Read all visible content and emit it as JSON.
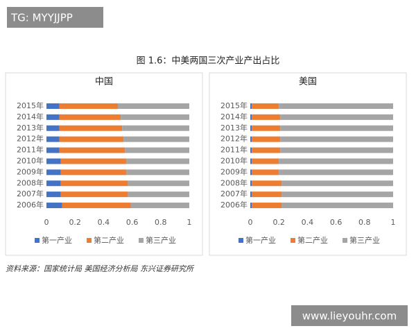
{
  "watermark_top": "TG: MYYJJPP",
  "figure_title": "图 1.6：中美两国三次产业产出占比",
  "source": "资料来源：国家统计局 美国经济分析局   东兴证券研究所",
  "watermark_bottom": "www.lieyouhr.com",
  "chart_data": [
    {
      "type": "bar",
      "orientation": "horizontal",
      "stacked": true,
      "title": "中国",
      "categories": [
        "2015年",
        "2014年",
        "2013年",
        "2012年",
        "2011年",
        "2010年",
        "2009年",
        "2008年",
        "2007年",
        "2006年"
      ],
      "series": [
        {
          "name": "第一产业",
          "color": "#4472c4",
          "values": [
            0.09,
            0.09,
            0.09,
            0.09,
            0.09,
            0.1,
            0.1,
            0.1,
            0.1,
            0.11
          ]
        },
        {
          "name": "第二产业",
          "color": "#ed7d31",
          "values": [
            0.41,
            0.43,
            0.44,
            0.45,
            0.46,
            0.46,
            0.46,
            0.47,
            0.47,
            0.48
          ]
        },
        {
          "name": "第三产业",
          "color": "#a5a5a5",
          "values": [
            0.5,
            0.48,
            0.47,
            0.46,
            0.45,
            0.44,
            0.44,
            0.43,
            0.43,
            0.41
          ]
        }
      ],
      "xlim": [
        0,
        1
      ],
      "xticks": [
        0,
        0.2,
        0.4,
        0.6,
        0.8,
        1
      ],
      "grid": false,
      "legend": "bottom"
    },
    {
      "type": "bar",
      "orientation": "horizontal",
      "stacked": true,
      "title": "美国",
      "categories": [
        "2015年",
        "2014年",
        "2013年",
        "2012年",
        "2011年",
        "2010年",
        "2009年",
        "2008年",
        "2007年",
        "2006年"
      ],
      "series": [
        {
          "name": "第一产业",
          "color": "#4472c4",
          "values": [
            0.01,
            0.01,
            0.01,
            0.01,
            0.01,
            0.01,
            0.01,
            0.01,
            0.01,
            0.01
          ]
        },
        {
          "name": "第二产业",
          "color": "#ed7d31",
          "values": [
            0.19,
            0.2,
            0.2,
            0.2,
            0.2,
            0.19,
            0.19,
            0.21,
            0.21,
            0.21
          ]
        },
        {
          "name": "第三产业",
          "color": "#a5a5a5",
          "values": [
            0.8,
            0.79,
            0.79,
            0.79,
            0.79,
            0.8,
            0.8,
            0.78,
            0.78,
            0.78
          ]
        }
      ],
      "xlim": [
        0,
        1
      ],
      "xticks": [
        0,
        0.2,
        0.4,
        0.6,
        0.8,
        1
      ],
      "grid": false,
      "legend": "bottom"
    }
  ]
}
